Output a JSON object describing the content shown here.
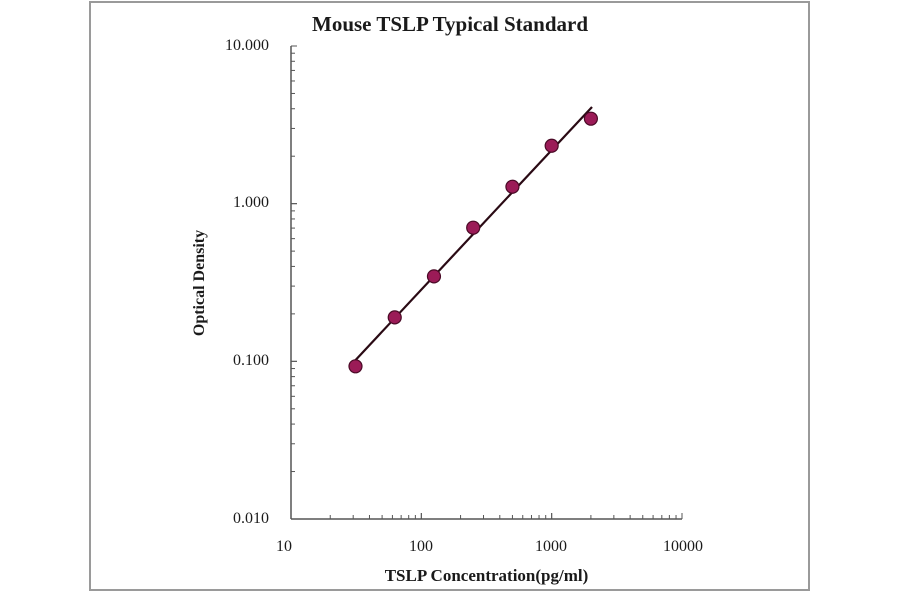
{
  "chart_data": {
    "type": "scatter",
    "title": "Mouse TSLP Typical Standard",
    "xlabel": "TSLP Concentration(pg/ml)",
    "ylabel": "Optical Density",
    "xscale": "log",
    "yscale": "log",
    "xlim": [
      10,
      10000
    ],
    "ylim": [
      0.01,
      10
    ],
    "x_tick_labels": [
      "10",
      "100",
      "1000",
      "10000"
    ],
    "y_tick_labels": [
      "10.000",
      "1.000",
      "0.100",
      "0.010"
    ],
    "grid": false,
    "legend": null,
    "series": [
      {
        "name": "Standard",
        "marker": "circle",
        "color": "#9b1b57",
        "line_color": "#2a0a14",
        "fit_line": true,
        "x": [
          31.25,
          62.5,
          125,
          250,
          500,
          1000,
          2000
        ],
        "y": [
          0.093,
          0.19,
          0.346,
          0.704,
          1.28,
          2.33,
          3.46
        ]
      }
    ]
  },
  "colors": {
    "marker_fill": "#9b1b57",
    "marker_stroke": "#4a0a26",
    "line": "#2a0a14",
    "axis": "#555555",
    "frame": "#9a9a9a"
  }
}
